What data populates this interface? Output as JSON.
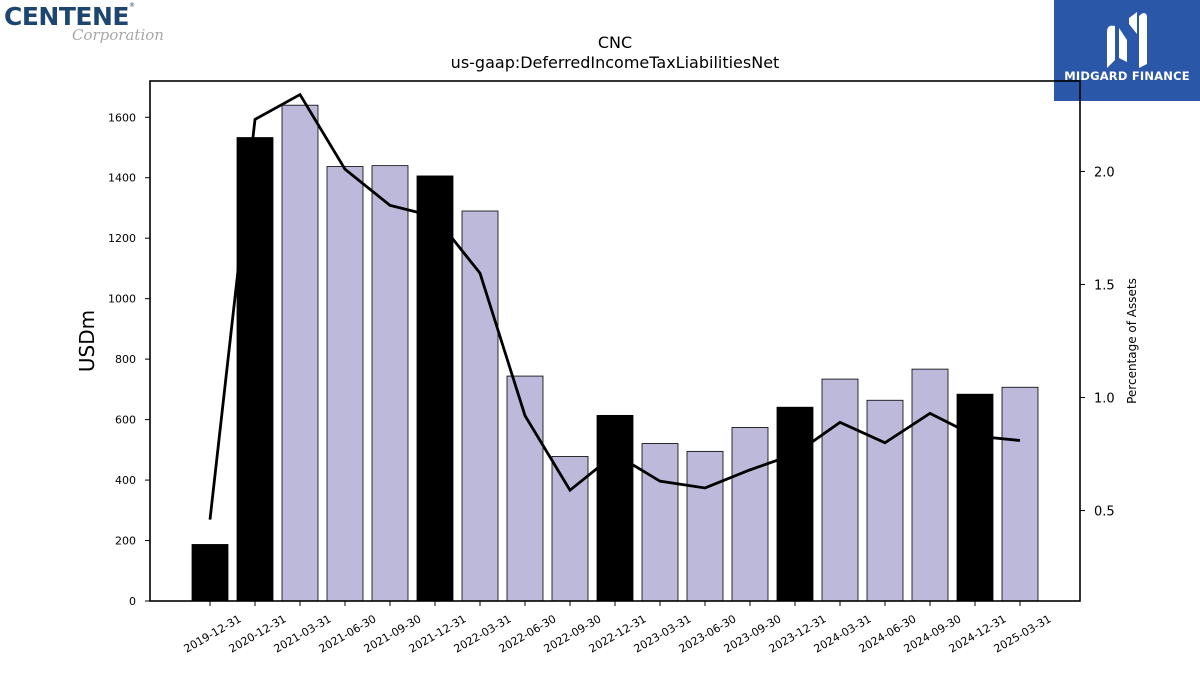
{
  "branding": {
    "left_logo_text": "CENTENE",
    "left_logo_reg": "®",
    "left_logo_sub": "Corporation",
    "right_logo_text": "MIDGARD FINANCE",
    "right_logo_icon": "midgard-m-icon",
    "right_logo_bg": "#2b57a8"
  },
  "chart_data": {
    "type": "bar",
    "title": "CNC",
    "subtitle": "us-gaap:DeferredIncomeTaxLiabilitiesNet",
    "ylabel": "USDm",
    "y2label": "Percentage of Assets",
    "ylim": [
      0,
      1720
    ],
    "y2lim": [
      0.1,
      2.4
    ],
    "yticks": [
      0,
      200,
      400,
      600,
      800,
      1000,
      1200,
      1400,
      1600
    ],
    "y2ticks": [
      "0.5",
      "1.0",
      "1.5",
      "2.0"
    ],
    "categories": [
      "2019-12-31",
      "2020-12-31",
      "2021-03-31",
      "2021-06-30",
      "2021-09-30",
      "2021-12-31",
      "2022-03-31",
      "2022-06-30",
      "2022-09-30",
      "2022-12-31",
      "2023-03-31",
      "2023-06-30",
      "2023-09-30",
      "2023-12-31",
      "2024-03-31",
      "2024-06-30",
      "2024-09-30",
      "2024-12-31",
      "2025-03-31"
    ],
    "series": [
      {
        "type": "bar",
        "values": [
          187,
          1533,
          1640,
          1437,
          1440,
          1406,
          1290,
          744,
          478,
          614,
          521,
          495,
          574,
          641,
          734,
          664,
          767,
          684,
          707
        ],
        "colors": [
          "#000000",
          "#000000",
          "#bdb9da",
          "#bdb9da",
          "#bdb9da",
          "#000000",
          "#bdb9da",
          "#bdb9da",
          "#bdb9da",
          "#000000",
          "#bdb9da",
          "#bdb9da",
          "#bdb9da",
          "#000000",
          "#bdb9da",
          "#bdb9da",
          "#bdb9da",
          "#000000",
          "#bdb9da"
        ]
      },
      {
        "type": "line",
        "axis": "right",
        "values": [
          0.46,
          2.23,
          2.34,
          2.01,
          1.85,
          1.8,
          1.55,
          0.92,
          0.59,
          0.75,
          0.63,
          0.6,
          0.68,
          0.75,
          0.89,
          0.8,
          0.93,
          0.83,
          0.81
        ]
      }
    ],
    "bar_color_annual": "#000000",
    "bar_color_quarter": "#bdb9da",
    "grid": false
  }
}
